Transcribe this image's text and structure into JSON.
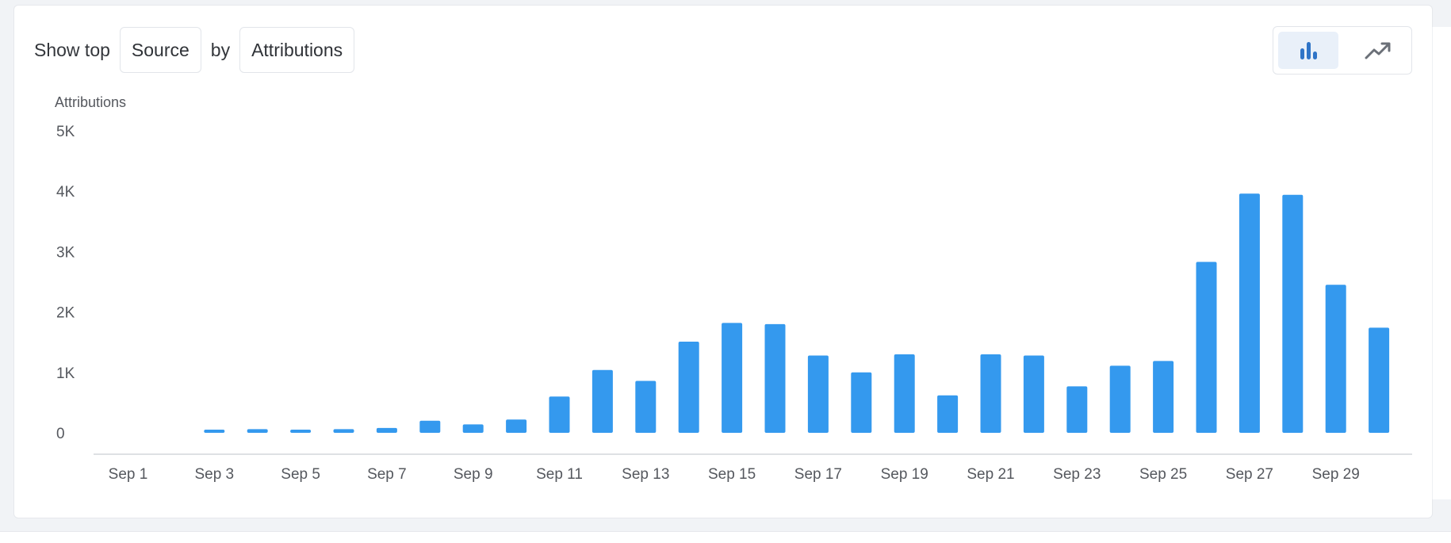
{
  "controls": {
    "prefix": "Show top",
    "dimension": "Source",
    "joiner": "by",
    "metric": "Attributions"
  },
  "view_toggle": {
    "bar_icon": "bar-chart-icon",
    "line_icon": "trend-line-icon",
    "active": "bar"
  },
  "colors": {
    "bar": "#3499ee",
    "active_icon": "#2f74c7",
    "inactive_icon": "#6b7078",
    "axis": "#d4d7dc",
    "text": "#55585e"
  },
  "chart_data": {
    "type": "bar",
    "ylabel": "Attributions",
    "xlabel": "",
    "ylim": [
      0,
      5000
    ],
    "y_ticks": [
      {
        "value": 0,
        "label": "0"
      },
      {
        "value": 1000,
        "label": "1K"
      },
      {
        "value": 2000,
        "label": "2K"
      },
      {
        "value": 3000,
        "label": "3K"
      },
      {
        "value": 4000,
        "label": "4K"
      },
      {
        "value": 5000,
        "label": "5K"
      }
    ],
    "categories": [
      "Sep 1",
      "Sep 2",
      "Sep 3",
      "Sep 4",
      "Sep 5",
      "Sep 6",
      "Sep 7",
      "Sep 8",
      "Sep 9",
      "Sep 10",
      "Sep 11",
      "Sep 12",
      "Sep 13",
      "Sep 14",
      "Sep 15",
      "Sep 16",
      "Sep 17",
      "Sep 18",
      "Sep 19",
      "Sep 20",
      "Sep 21",
      "Sep 22",
      "Sep 23",
      "Sep 24",
      "Sep 25",
      "Sep 26",
      "Sep 27",
      "Sep 28",
      "Sep 29",
      "Sep 30"
    ],
    "x_tick_labels": [
      "Sep 1",
      "Sep 3",
      "Sep 5",
      "Sep 7",
      "Sep 9",
      "Sep 11",
      "Sep 13",
      "Sep 15",
      "Sep 17",
      "Sep 19",
      "Sep 21",
      "Sep 23",
      "Sep 25",
      "Sep 27",
      "Sep 29"
    ],
    "values": [
      0,
      0,
      40,
      60,
      40,
      60,
      80,
      200,
      140,
      220,
      600,
      1040,
      860,
      1510,
      1820,
      1800,
      1280,
      1000,
      1300,
      620,
      1300,
      1280,
      770,
      1110,
      1190,
      2830,
      3960,
      3940,
      2450,
      1740
    ],
    "grid": false,
    "legend": "none"
  }
}
